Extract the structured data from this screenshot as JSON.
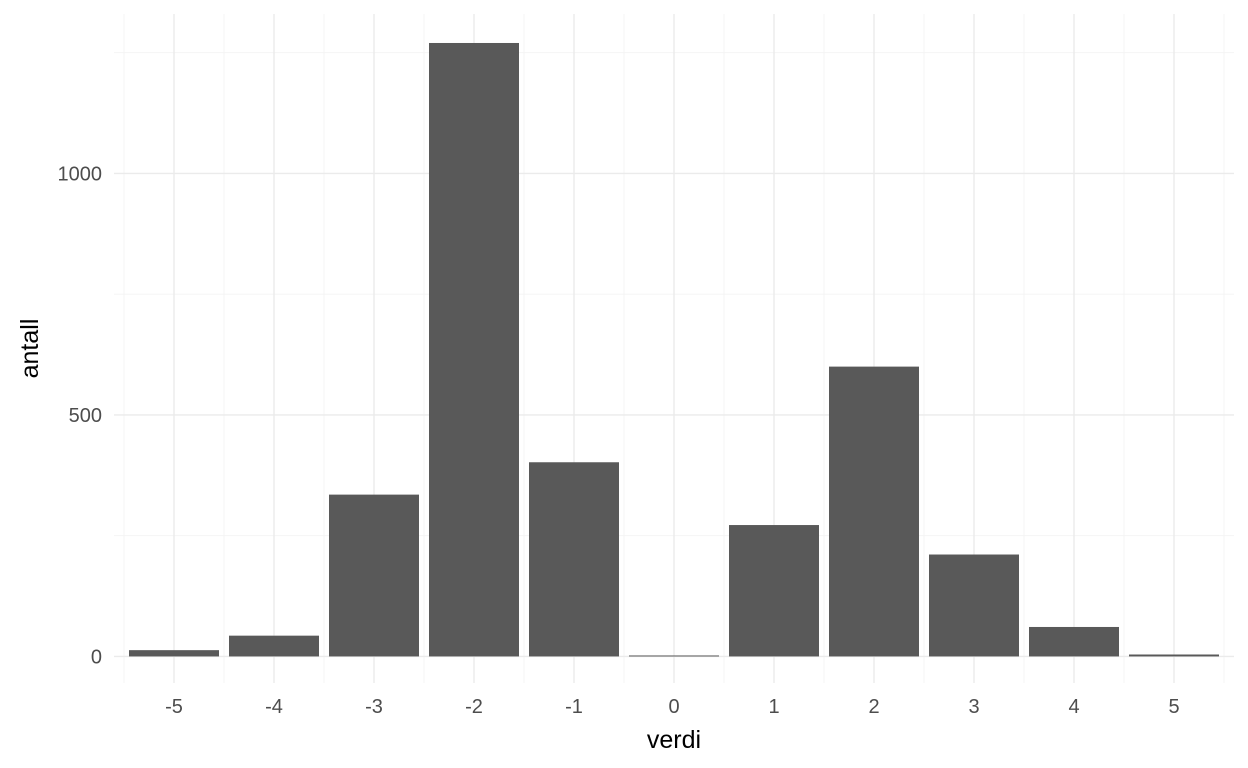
{
  "chart_data": {
    "type": "bar",
    "title": "",
    "xlabel": "verdi",
    "ylabel": "antall",
    "categories": [
      "-5",
      "-4",
      "-3",
      "-2",
      "-1",
      "0",
      "1",
      "2",
      "3",
      "4",
      "5"
    ],
    "values": [
      13,
      43,
      335,
      1270,
      402,
      2,
      272,
      600,
      211,
      61,
      4
    ],
    "ylim": [
      -55,
      1330
    ],
    "y_ticks": [
      0,
      500,
      1000
    ],
    "y_tick_labels": [
      "0",
      "500",
      "1000"
    ],
    "grid": true,
    "legend": "none",
    "bar_color": "#595959",
    "grid_color": "#ebebeb",
    "background": "#ffffff"
  }
}
